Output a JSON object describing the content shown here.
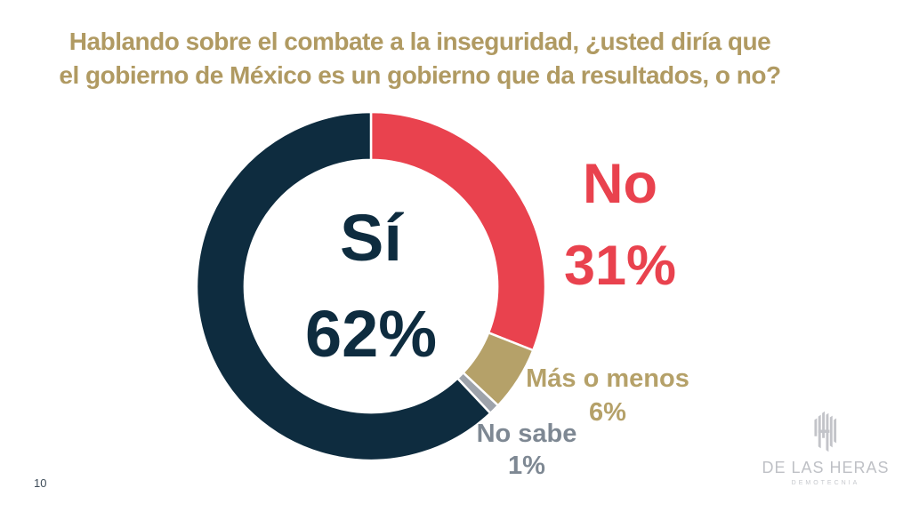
{
  "slide": {
    "title_line1": "Hablando sobre el combate a la inseguridad, ¿usted diría que",
    "title_line2": "el gobierno de México es un gobierno que da resultados, o no?",
    "page_number": "10"
  },
  "chart_data": {
    "type": "pie",
    "subtype": "donut",
    "title": "Hablando sobre el combate a la inseguridad, ¿usted diría que el gobierno de México es un gobierno que da resultados, o no?",
    "categories": [
      "No",
      "Mas o menos",
      "No sabe",
      "Si"
    ],
    "values": [
      31,
      6,
      1,
      62
    ],
    "unit": "%",
    "slice_colors": [
      "#e9424e",
      "#b5a169",
      "#9ea3ab",
      "#0e2c3f"
    ],
    "start_angle_deg": 0,
    "direction": "clockwise",
    "inner_radius_ratio": 0.725,
    "legend": "none",
    "annotations": {
      "center_label": "Sí",
      "center_value": "62%",
      "no_label": "No",
      "no_value": "31%",
      "mas_label": "Más o menos",
      "mas_value": "6%",
      "nosabe_label": "No sabe",
      "nosabe_value": "1%"
    }
  },
  "colors": {
    "title_gold": "#b09a62",
    "navy": "#0e2c3f",
    "red": "#e9424e",
    "gold": "#b5a169",
    "gray": "#9ea3ab",
    "label_gray": "#7e8893",
    "page_number_color": "#3f4d5a",
    "logo_gray": "#c3c4c9"
  },
  "logo": {
    "mark_icon": "bars-monogram-icon",
    "name": "DE LAS HERAS",
    "subtitle": "DEMOTECNIA"
  }
}
